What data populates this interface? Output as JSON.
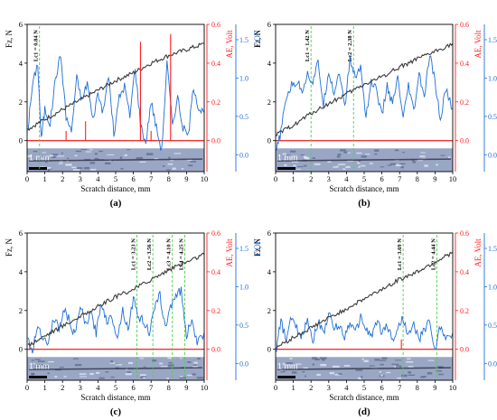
{
  "chart_data": [
    {
      "panel_label": "(a)",
      "type": "line",
      "xlabel": "Scratch distance, mm",
      "ylabel_left": "Fz, N",
      "ylabel_right1": "AE, Volt",
      "ylabel_right2": "COF",
      "xlim": [
        0,
        10
      ],
      "ylim_fz": [
        -1.6,
        6
      ],
      "ylim_ae": [
        -0.16,
        0.6
      ],
      "ylim_cof": [
        -0.22,
        1.7
      ],
      "xticks": [
        "0",
        "1",
        "2",
        "3",
        "4",
        "5",
        "6",
        "7",
        "8",
        "9",
        "10"
      ],
      "yticks_fz": [
        "0",
        "2",
        "4",
        "6"
      ],
      "yticks_ae": [
        "0.0",
        "0.2",
        "0.4",
        "0.6"
      ],
      "yticks_cof": [
        "0.0",
        "0.5",
        "1.0",
        "1.5"
      ],
      "scale_bar": "1 mm",
      "critical_loads": [
        {
          "label": "Lc1 = 0.84 N",
          "x": 0.7
        }
      ],
      "fz": {
        "x": [
          0.05,
          1,
          2,
          3,
          4,
          5,
          6,
          7,
          8,
          9,
          10
        ],
        "y": [
          0.6,
          1.1,
          1.6,
          2.1,
          2.6,
          3.1,
          3.5,
          4.0,
          4.4,
          4.7,
          5.0
        ]
      },
      "ae_spikes": [
        {
          "x": 2.2,
          "y": 0.05
        },
        {
          "x": 3.3,
          "y": 0.1
        },
        {
          "x": 6.4,
          "y": 0.51
        },
        {
          "x": 7.0,
          "y": 0.05
        },
        {
          "x": 8.1,
          "y": 0.55
        }
      ],
      "cof": {
        "x": [
          0.05,
          0.3,
          0.6,
          0.8,
          1.0,
          1.3,
          1.6,
          1.9,
          2.2,
          2.5,
          2.8,
          3.1,
          3.4,
          3.7,
          4.0,
          4.3,
          4.6,
          4.9,
          5.2,
          5.5,
          5.8,
          6.1,
          6.4,
          6.7,
          7.0,
          7.3,
          7.6,
          7.9,
          8.2,
          8.5,
          8.8,
          9.1,
          9.4,
          9.7,
          10.0
        ],
        "y": [
          0.35,
          0.9,
          1.2,
          0.2,
          0.6,
          0.4,
          1.0,
          1.3,
          0.5,
          0.3,
          1.0,
          0.7,
          0.95,
          0.45,
          0.8,
          0.55,
          1.05,
          0.25,
          0.75,
          0.9,
          0.5,
          1.15,
          0.4,
          0.15,
          0.7,
          0.35,
          0.05,
          1.2,
          0.4,
          0.75,
          0.35,
          0.25,
          0.9,
          0.6,
          0.55
        ]
      }
    },
    {
      "panel_label": "(b)",
      "type": "line",
      "xlabel": "Scratch distance, mm",
      "ylabel_left": "Fz, N",
      "ylabel_right1": "AE, Volt",
      "ylabel_right2": "COF",
      "xlim": [
        0,
        10
      ],
      "ylim_fz": [
        -1.6,
        6
      ],
      "ylim_ae": [
        -0.16,
        0.6
      ],
      "ylim_cof": [
        -0.22,
        1.7
      ],
      "xticks": [
        "0",
        "1",
        "2",
        "3",
        "4",
        "5",
        "6",
        "7",
        "8",
        "9",
        "10"
      ],
      "yticks_fz": [
        "0",
        "2",
        "4",
        "6"
      ],
      "yticks_ae": [
        "0.0",
        "0.2",
        "0.4",
        "0.6"
      ],
      "yticks_cof": [
        "0.0",
        "0.5",
        "1.0",
        "1.5"
      ],
      "scale_bar": "1 mm",
      "critical_loads": [
        {
          "label": "Lc1 = 1.42 N",
          "x": 2.0
        },
        {
          "label": "Lc2 = 2.38 N",
          "x": 4.4
        }
      ],
      "fz": {
        "x": [
          0.05,
          1,
          2,
          3,
          4,
          5,
          6,
          7,
          8,
          9,
          10
        ],
        "y": [
          0.3,
          0.8,
          1.4,
          1.9,
          2.4,
          2.9,
          3.3,
          3.8,
          4.2,
          4.6,
          5.0
        ]
      },
      "ae_spikes": [],
      "cof": {
        "x": [
          0.05,
          0.3,
          0.6,
          0.9,
          1.2,
          1.5,
          1.8,
          2.1,
          2.4,
          2.7,
          3.0,
          3.3,
          3.6,
          3.9,
          4.2,
          4.5,
          4.8,
          5.1,
          5.4,
          5.7,
          6.0,
          6.3,
          6.6,
          6.9,
          7.2,
          7.5,
          7.8,
          8.1,
          8.4,
          8.7,
          9.0,
          9.3,
          9.6,
          10.0
        ],
        "y": [
          0.05,
          0.3,
          0.75,
          0.9,
          0.95,
          0.85,
          1.05,
          0.95,
          1.2,
          0.65,
          1.1,
          0.8,
          1.1,
          0.6,
          1.25,
          1.0,
          1.15,
          0.5,
          0.95,
          0.85,
          0.5,
          0.9,
          0.65,
          1.0,
          0.45,
          0.9,
          0.55,
          1.05,
          0.75,
          1.3,
          0.95,
          0.45,
          0.85,
          0.6
        ]
      }
    },
    {
      "panel_label": "(c)",
      "type": "line",
      "xlabel": "Scratch distance, mm",
      "ylabel_left": "Fz, N",
      "ylabel_right1": "AE, Volt",
      "ylabel_right2": "COF",
      "xlim": [
        0,
        10
      ],
      "ylim_fz": [
        -1.6,
        6
      ],
      "ylim_ae": [
        -0.16,
        0.6
      ],
      "ylim_cof": [
        -0.22,
        1.7
      ],
      "xticks": [
        "0",
        "1",
        "2",
        "3",
        "4",
        "5",
        "6",
        "7",
        "8",
        "9",
        "10"
      ],
      "yticks_fz": [
        "0",
        "2",
        "4",
        "6"
      ],
      "yticks_ae": [
        "0.0",
        "0.2",
        "0.4",
        "0.6"
      ],
      "yticks_cof": [
        "0.0",
        "0.5",
        "1.0",
        "1.5"
      ],
      "scale_bar": "1 mm",
      "critical_loads": [
        {
          "label": "Lc1 = 3.23 N",
          "x": 6.2
        },
        {
          "label": "Lc2 = 3.56 N",
          "x": 7.1
        },
        {
          "label": "Lc3 = 4.10 N",
          "x": 8.2
        },
        {
          "label": "Lc4 = 4.25 N",
          "x": 8.9
        }
      ],
      "fz": {
        "x": [
          0.05,
          1,
          2,
          3,
          4,
          5,
          6,
          7,
          8,
          9,
          10
        ],
        "y": [
          0.2,
          0.7,
          1.2,
          1.7,
          2.2,
          2.7,
          3.1,
          3.6,
          4.1,
          4.5,
          4.9
        ]
      },
      "ae_spikes": [],
      "cof": {
        "x": [
          0.05,
          0.3,
          0.6,
          0.9,
          1.2,
          1.5,
          1.8,
          2.1,
          2.4,
          2.7,
          3.0,
          3.3,
          3.6,
          3.9,
          4.2,
          4.5,
          4.8,
          5.1,
          5.4,
          5.7,
          6.0,
          6.3,
          6.6,
          6.9,
          7.2,
          7.5,
          7.8,
          8.1,
          8.4,
          8.7,
          9.0,
          9.3,
          9.6,
          10.0
        ],
        "y": [
          0.3,
          0.15,
          0.5,
          0.35,
          0.25,
          0.6,
          0.45,
          0.7,
          0.55,
          0.35,
          0.75,
          0.5,
          0.65,
          0.4,
          0.8,
          0.55,
          0.6,
          0.35,
          0.7,
          0.45,
          0.85,
          0.6,
          0.55,
          0.4,
          0.7,
          0.9,
          0.45,
          0.75,
          0.9,
          0.95,
          0.35,
          0.6,
          0.25,
          0.4
        ]
      }
    },
    {
      "panel_label": "(d)",
      "type": "line",
      "xlabel": "Scratch distance, mm",
      "ylabel_left": "Fz, N",
      "ylabel_right1": "AE, Volt",
      "ylabel_right2": "COF",
      "xlim": [
        0,
        10
      ],
      "ylim_fz": [
        -1.6,
        6
      ],
      "ylim_ae": [
        -0.16,
        0.6
      ],
      "ylim_cof": [
        -0.22,
        1.7
      ],
      "xticks": [
        "0",
        "1",
        "2",
        "3",
        "4",
        "5",
        "6",
        "7",
        "8",
        "9",
        "10"
      ],
      "yticks_fz": [
        "0",
        "2",
        "4",
        "6"
      ],
      "yticks_ae": [
        "0.0",
        "0.2",
        "0.4",
        "0.6"
      ],
      "yticks_cof": [
        "0.0",
        "0.5",
        "1.0",
        "1.5"
      ],
      "scale_bar": "1 mm",
      "critical_loads": [
        {
          "label": "Lc1 = 3.69 N",
          "x": 7.2
        },
        {
          "label": "Lc2 = 4.44 N",
          "x": 9.1
        }
      ],
      "fz": {
        "x": [
          0.05,
          1,
          2,
          3,
          4,
          5,
          6,
          7,
          8,
          9,
          10
        ],
        "y": [
          0.1,
          0.6,
          1.1,
          1.6,
          2.1,
          2.6,
          3.1,
          3.6,
          4.0,
          4.5,
          5.0
        ]
      },
      "ae_spikes": [
        {
          "x": 7.1,
          "y": 0.05
        }
      ],
      "cof": {
        "x": [
          0.05,
          0.3,
          0.6,
          0.9,
          1.2,
          1.5,
          1.8,
          2.1,
          2.4,
          2.7,
          3.0,
          3.3,
          3.6,
          3.9,
          4.2,
          4.5,
          4.8,
          5.1,
          5.4,
          5.7,
          6.0,
          6.3,
          6.6,
          6.9,
          7.2,
          7.5,
          7.8,
          8.1,
          8.4,
          8.7,
          9.0,
          9.3,
          9.6,
          10.0
        ],
        "y": [
          0.2,
          0.55,
          0.3,
          0.6,
          0.45,
          0.35,
          0.6,
          0.3,
          0.55,
          0.4,
          0.65,
          0.45,
          0.5,
          0.35,
          0.55,
          0.4,
          0.6,
          0.45,
          0.35,
          0.55,
          0.4,
          0.5,
          0.3,
          0.45,
          0.6,
          0.35,
          0.5,
          0.3,
          0.45,
          0.55,
          0.15,
          0.5,
          0.3,
          0.4
        ]
      }
    }
  ]
}
